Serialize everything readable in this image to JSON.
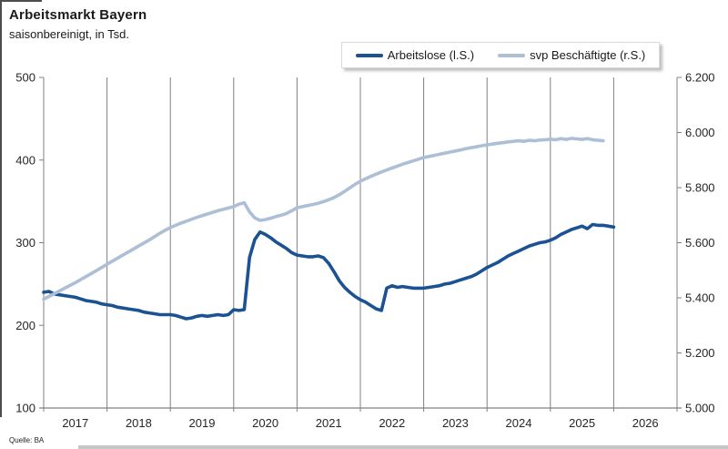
{
  "title": "Arbeitsmarkt Bayern",
  "subtitle": "saisonbereinigt, in Tsd.",
  "source": "Quelle: BA",
  "colors": {
    "series_dark_blue": "#1b5291",
    "series_light_blue": "#adbfd6",
    "axis_gray": "#808080",
    "label_text": "#262626"
  },
  "legend": {
    "entries": [
      {
        "label": "Arbeitslose (l.S.)",
        "color": "#1b5291"
      },
      {
        "label": "svp Beschäftigte (r.S.)",
        "color": "#adbfd6"
      }
    ]
  },
  "chart_data": {
    "type": "line",
    "title": "Arbeitsmarkt Bayern",
    "subtitle": "saisonbereinigt, in Tsd.",
    "x_axis": {
      "start_year": 2017,
      "end_year": 2027,
      "months_total": 120,
      "tick_labels": [
        "2017",
        "2018",
        "2019",
        "2020",
        "2021",
        "2022",
        "2023",
        "2024",
        "2025",
        "2026"
      ],
      "grid": "vertical-yearly"
    },
    "left_axis": {
      "labels": [
        "500",
        "400",
        "300",
        "200",
        "100"
      ],
      "values": [
        500,
        400,
        300,
        200,
        100
      ],
      "min": 100,
      "max": 500
    },
    "right_axis": {
      "labels": [
        "6.200",
        "6.000",
        "5.800",
        "5.600",
        "5.400",
        "5.200",
        "5.000"
      ],
      "values": [
        6200,
        6000,
        5800,
        5600,
        5400,
        5200,
        5000
      ],
      "min": 5000,
      "max": 6200
    },
    "legend_position": "top-right-box",
    "series": [
      {
        "name": "Arbeitslose (l.S.)",
        "axis": "left",
        "color": "#1b5291",
        "start": "2017-01",
        "values": [
          240,
          241,
          238,
          237,
          236,
          235,
          234,
          232,
          230,
          229,
          228,
          226,
          225,
          224,
          222,
          221,
          220,
          219,
          218,
          216,
          215,
          214,
          213,
          213,
          213,
          212,
          210,
          208,
          209,
          211,
          212,
          211,
          212,
          213,
          212,
          213,
          219,
          218,
          219,
          282,
          304,
          313,
          310,
          306,
          301,
          297,
          293,
          288,
          285,
          284,
          283,
          283,
          284,
          282,
          275,
          265,
          254,
          246,
          240,
          235,
          231,
          228,
          224,
          220,
          218,
          245,
          248,
          246,
          247,
          246,
          245,
          245,
          245,
          246,
          247,
          248,
          250,
          251,
          253,
          255,
          257,
          259,
          262,
          266,
          270,
          273,
          276,
          280,
          284,
          287,
          290,
          293,
          296,
          298,
          300,
          301,
          303,
          306,
          310,
          313,
          316,
          318,
          320,
          317,
          322,
          321,
          321,
          320,
          319
        ]
      },
      {
        "name": "svp Beschäftigte (r.S.)",
        "axis": "right",
        "color": "#adbfd6",
        "start": "2017-01",
        "values": [
          5395,
          5405,
          5415,
          5425,
          5435,
          5445,
          5455,
          5466,
          5477,
          5488,
          5499,
          5510,
          5522,
          5533,
          5544,
          5555,
          5566,
          5577,
          5588,
          5599,
          5610,
          5622,
          5634,
          5645,
          5655,
          5663,
          5671,
          5678,
          5685,
          5692,
          5698,
          5704,
          5710,
          5716,
          5721,
          5726,
          5731,
          5740,
          5745,
          5712,
          5690,
          5681,
          5684,
          5689,
          5695,
          5700,
          5706,
          5716,
          5727,
          5731,
          5735,
          5739,
          5743,
          5749,
          5756,
          5764,
          5774,
          5786,
          5799,
          5812,
          5823,
          5832,
          5841,
          5849,
          5857,
          5864,
          5871,
          5878,
          5885,
          5891,
          5897,
          5903,
          5909,
          5913,
          5917,
          5921,
          5925,
          5929,
          5933,
          5937,
          5941,
          5945,
          5948,
          5952,
          5955,
          5958,
          5961,
          5963,
          5966,
          5968,
          5970,
          5968,
          5972,
          5970,
          5973,
          5974,
          5976,
          5974,
          5978,
          5975,
          5979,
          5977,
          5975,
          5978,
          5974,
          5972,
          5970
        ]
      }
    ]
  }
}
